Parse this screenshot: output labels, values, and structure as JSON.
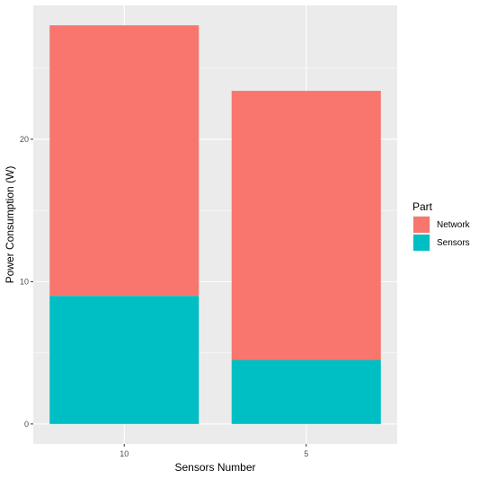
{
  "chart_data": {
    "type": "bar",
    "stacked": true,
    "categories": [
      "10",
      "5"
    ],
    "series": [
      {
        "name": "Network",
        "values": [
          19.0,
          18.9
        ],
        "color": "#F8766D"
      },
      {
        "name": "Sensors",
        "values": [
          9.0,
          4.5
        ],
        "color": "#00BFC4"
      }
    ],
    "title": "",
    "xlabel": "Sensors Number",
    "ylabel": "Power Consumption (W)",
    "ylim": [
      -1.4,
      29.4
    ],
    "yticks": [
      0,
      10,
      20
    ],
    "ytick_labels": [
      "0",
      "10",
      "20"
    ],
    "legend": {
      "title": "Part",
      "position": "right"
    },
    "grid": true,
    "panel_background": "#EBEBEB"
  }
}
